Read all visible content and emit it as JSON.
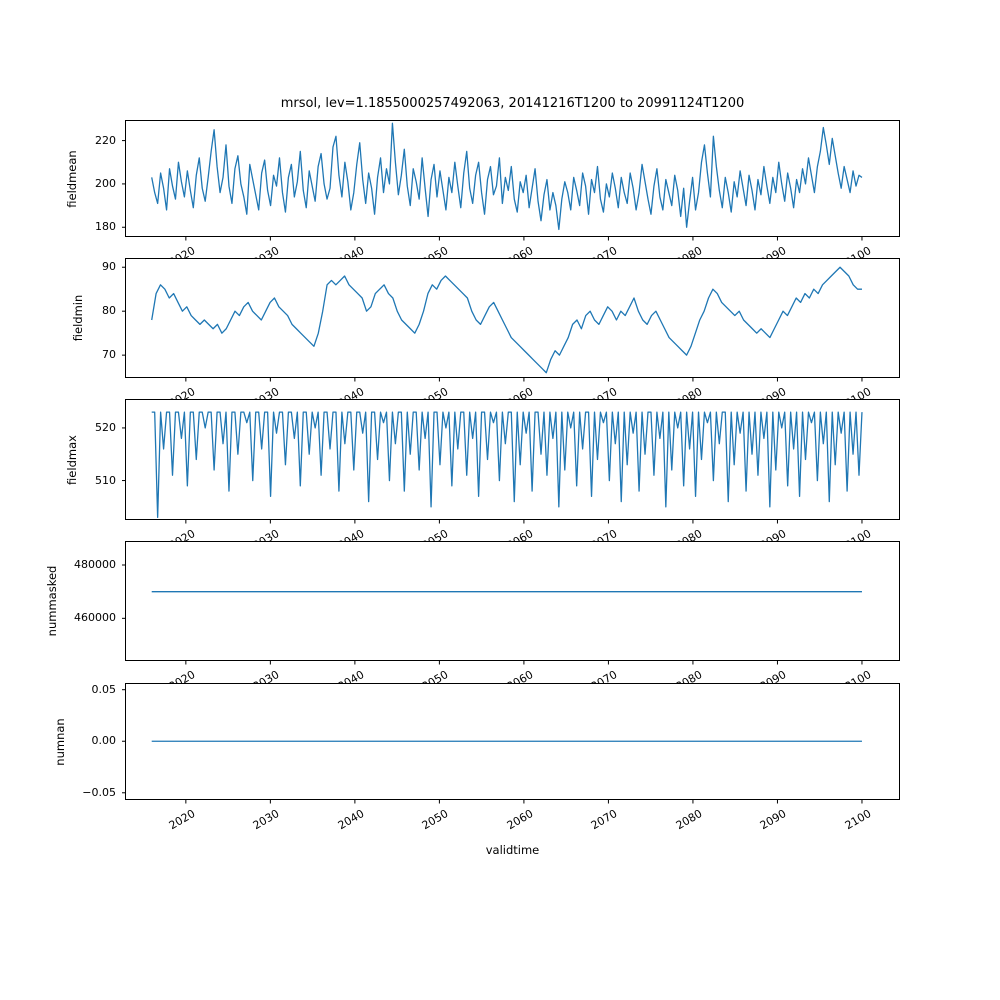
{
  "chart_data": {
    "type": "line",
    "title": "mrsol, lev=1.1855000257492063, 20141216T1200 to 20991124T1200",
    "xlabel": "validtime",
    "line_color": "#1f77b4",
    "x_range": [
      2012.8,
      2104.5
    ],
    "x_ticks": [
      2020,
      2030,
      2040,
      2050,
      2060,
      2070,
      2080,
      2090,
      2100
    ],
    "x_tick_labels": [
      "2020",
      "2030",
      "2040",
      "2050",
      "2060",
      "2070",
      "2080",
      "2090",
      "2100"
    ],
    "series_x_start": 2015.96,
    "series_x_end": 2100,
    "grid": false,
    "legend": "none",
    "subplots": [
      {
        "ylabel": "fieldmean",
        "ylim": [
          175.5,
          229.5
        ],
        "yticks": [
          180,
          200,
          220
        ],
        "ytick_labels": [
          "180",
          "200",
          "220"
        ],
        "values": [
          203,
          196,
          191,
          205,
          198,
          188,
          207,
          199,
          193,
          210,
          201,
          194,
          206,
          197,
          189,
          204,
          212,
          198,
          192,
          203,
          215,
          225,
          208,
          196,
          203,
          218,
          199,
          191,
          207,
          213,
          200,
          194,
          186,
          209,
          202,
          195,
          188,
          205,
          211,
          197,
          190,
          204,
          199,
          212,
          196,
          187,
          203,
          209,
          194,
          201,
          215,
          197,
          189,
          206,
          199,
          192,
          208,
          214,
          200,
          193,
          198,
          217,
          222,
          204,
          194,
          210,
          201,
          188,
          196,
          209,
          219,
          202,
          191,
          205,
          198,
          186,
          203,
          212,
          196,
          207,
          200,
          228,
          210,
          195,
          204,
          216,
          199,
          190,
          207,
          201,
          193,
          212,
          198,
          185,
          202,
          209,
          194,
          206,
          197,
          188,
          203,
          196,
          210,
          199,
          189,
          205,
          215,
          198,
          191,
          204,
          210,
          196,
          186,
          202,
          208,
          195,
          199,
          212,
          191,
          203,
          197,
          208,
          193,
          187,
          201,
          196,
          204,
          189,
          198,
          207,
          192,
          183,
          195,
          202,
          188,
          196,
          190,
          179,
          193,
          201,
          196,
          188,
          203,
          197,
          190,
          205,
          199,
          186,
          202,
          196,
          208,
          193,
          187,
          200,
          194,
          205,
          198,
          189,
          203,
          196,
          191,
          205,
          198,
          188,
          196,
          209,
          201,
          193,
          186,
          199,
          207,
          194,
          188,
          202,
          196,
          190,
          204,
          197,
          185,
          198,
          180,
          192,
          203,
          188,
          196,
          210,
          218,
          205,
          194,
          222,
          208,
          197,
          189,
          203,
          196,
          187,
          201,
          194,
          206,
          198,
          190,
          204,
          197,
          188,
          202,
          195,
          208,
          199,
          191,
          203,
          196,
          210,
          200,
          192,
          205,
          198,
          189,
          202,
          196,
          207,
          200,
          212,
          204,
          196,
          208,
          215,
          226,
          218,
          209,
          221,
          213,
          205,
          198,
          208,
          202,
          196,
          206,
          199,
          204,
          203
        ]
      },
      {
        "ylabel": "fieldmin",
        "ylim": [
          64.8,
          92.1
        ],
        "yticks": [
          70,
          80,
          90
        ],
        "ytick_labels": [
          "70",
          "80",
          "90"
        ],
        "values": [
          78,
          84,
          86,
          85,
          83,
          84,
          82,
          80,
          81,
          79,
          78,
          77,
          78,
          77,
          76,
          77,
          75,
          76,
          78,
          80,
          79,
          81,
          82,
          80,
          79,
          78,
          80,
          82,
          83,
          81,
          80,
          79,
          77,
          76,
          75,
          74,
          73,
          72,
          75,
          80,
          86,
          87,
          86,
          87,
          88,
          86,
          85,
          84,
          83,
          80,
          81,
          84,
          85,
          86,
          84,
          83,
          80,
          78,
          77,
          76,
          75,
          77,
          80,
          84,
          86,
          85,
          87,
          88,
          87,
          86,
          85,
          84,
          83,
          80,
          78,
          77,
          79,
          81,
          82,
          80,
          78,
          76,
          74,
          73,
          72,
          71,
          70,
          69,
          68,
          67,
          66,
          69,
          71,
          70,
          72,
          74,
          77,
          78,
          76,
          79,
          80,
          78,
          77,
          79,
          81,
          80,
          78,
          80,
          79,
          81,
          83,
          80,
          78,
          77,
          79,
          80,
          78,
          76,
          74,
          73,
          72,
          71,
          70,
          72,
          75,
          78,
          80,
          83,
          85,
          84,
          82,
          81,
          80,
          79,
          80,
          78,
          77,
          76,
          75,
          76,
          75,
          74,
          76,
          78,
          80,
          79,
          81,
          83,
          82,
          84,
          83,
          85,
          84,
          86,
          87,
          88,
          89,
          90,
          89,
          88,
          86,
          85,
          85
        ]
      },
      {
        "ylabel": "fieldmax",
        "ylim": [
          502.5,
          525.5
        ],
        "yticks": [
          510,
          520
        ],
        "ytick_labels": [
          "510",
          "520"
        ],
        "values": [
          523,
          523,
          503,
          523,
          516,
          523,
          523,
          511,
          523,
          523,
          518,
          523,
          509,
          523,
          523,
          514,
          523,
          523,
          520,
          523,
          523,
          512,
          523,
          523,
          517,
          523,
          508,
          523,
          523,
          515,
          523,
          523,
          521,
          523,
          510,
          523,
          523,
          516,
          523,
          523,
          507,
          523,
          519,
          523,
          523,
          513,
          523,
          523,
          518,
          523,
          509,
          523,
          523,
          515,
          523,
          520,
          523,
          511,
          523,
          523,
          516,
          523,
          523,
          508,
          523,
          517,
          523,
          523,
          512,
          523,
          523,
          519,
          523,
          506,
          523,
          523,
          514,
          523,
          521,
          523,
          510,
          523,
          517,
          523,
          523,
          508,
          523,
          515,
          523,
          523,
          512,
          523,
          518,
          523,
          505,
          523,
          523,
          513,
          523,
          520,
          523,
          509,
          523,
          516,
          523,
          523,
          511,
          523,
          518,
          523,
          507,
          523,
          523,
          514,
          523,
          521,
          523,
          510,
          523,
          517,
          523,
          523,
          506,
          523,
          513,
          523,
          519,
          523,
          508,
          523,
          523,
          515,
          523,
          511,
          523,
          518,
          523,
          505,
          523,
          512,
          523,
          520,
          523,
          509,
          523,
          516,
          523,
          523,
          507,
          523,
          514,
          523,
          521,
          523,
          510,
          523,
          517,
          523,
          506,
          523,
          513,
          523,
          519,
          523,
          508,
          523,
          515,
          523,
          523,
          511,
          523,
          518,
          523,
          505,
          523,
          512,
          523,
          520,
          523,
          509,
          523,
          516,
          523,
          507,
          523,
          514,
          523,
          521,
          523,
          510,
          523,
          517,
          523,
          523,
          506,
          523,
          513,
          523,
          519,
          523,
          508,
          523,
          515,
          523,
          511,
          523,
          518,
          523,
          505,
          523,
          512,
          523,
          520,
          523,
          509,
          523,
          516,
          523,
          507,
          523,
          514,
          523,
          521,
          523,
          510,
          523,
          517,
          523,
          506,
          523,
          513,
          523,
          519,
          523,
          508,
          523,
          515,
          523,
          511,
          523
        ]
      },
      {
        "ylabel": "nummasked",
        "ylim": [
          444000,
          489000
        ],
        "yticks": [
          460000,
          480000
        ],
        "ytick_labels": [
          "460000",
          "480000"
        ],
        "values": [
          470000,
          470000
        ]
      },
      {
        "ylabel": "numnan",
        "ylim": [
          -0.057,
          0.0565
        ],
        "yticks": [
          -0.05,
          0,
          0.05
        ],
        "ytick_labels": [
          "−0.05",
          "0.00",
          "0.05"
        ],
        "values": [
          0,
          0
        ]
      }
    ]
  }
}
